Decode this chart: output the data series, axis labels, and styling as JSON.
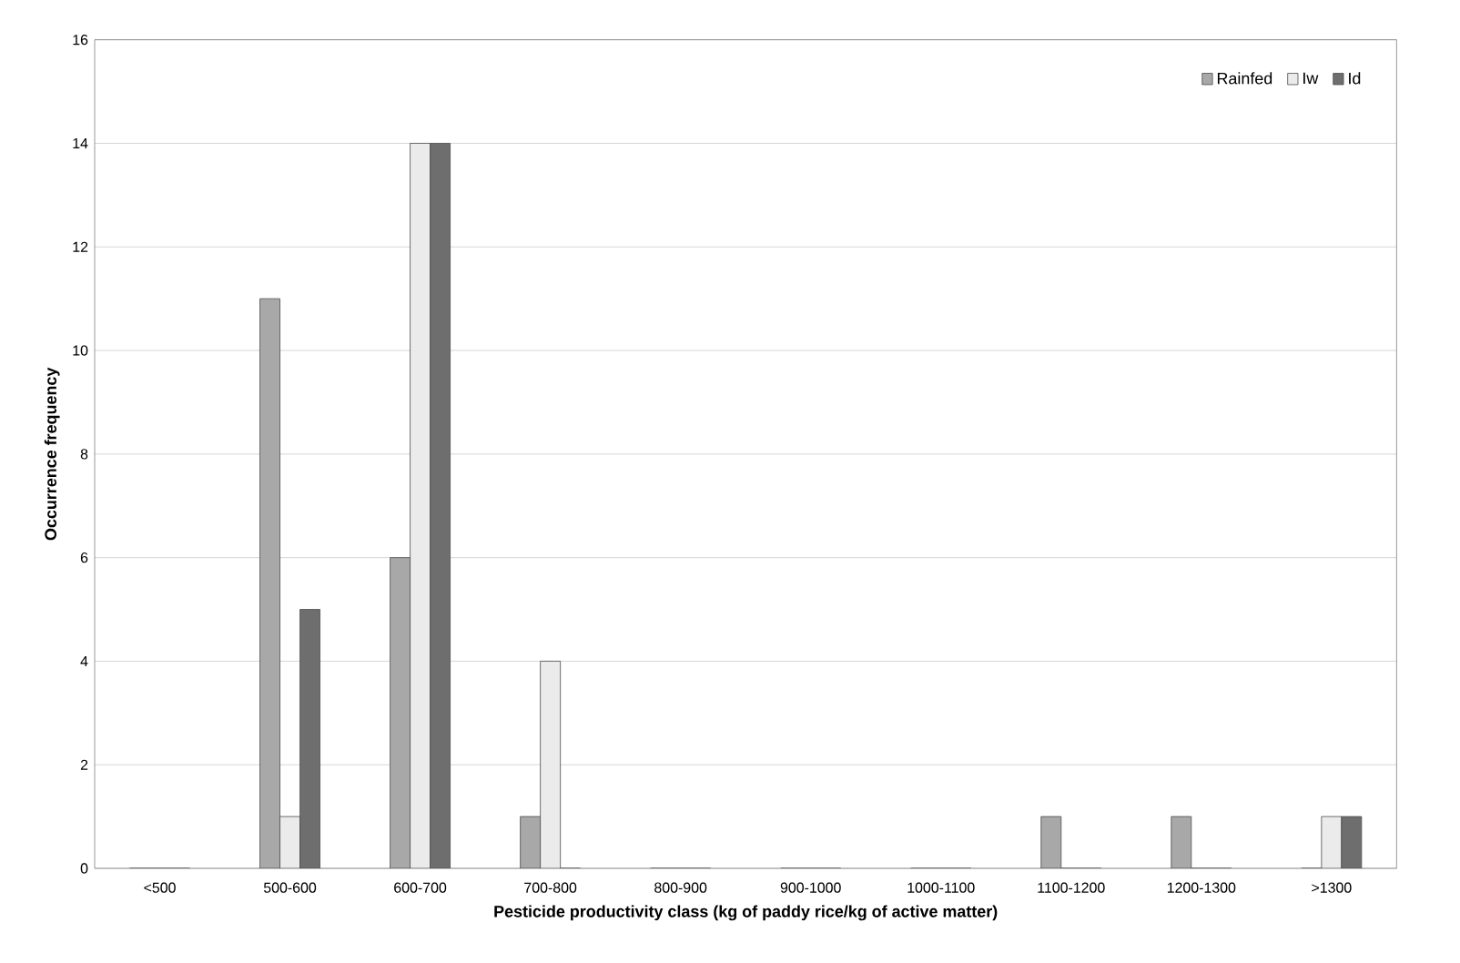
{
  "chart_data": {
    "type": "bar",
    "xlabel": "Pesticide productivity class (kg of paddy rice/kg of active matter)",
    "ylabel": "Occurrence frequency",
    "categories": [
      "<500",
      "500-600",
      "600-700",
      "700-800",
      "800-900",
      "900-1000",
      "1000-1100",
      "1100-1200",
      "1200-1300",
      ">1300"
    ],
    "series": [
      {
        "name": "Rainfed",
        "color": "#a8a8a8",
        "values": [
          0,
          11,
          6,
          1,
          0,
          0,
          0,
          1,
          1,
          0
        ]
      },
      {
        "name": "Iw",
        "color": "#ebebeb",
        "values": [
          0,
          1,
          14,
          4,
          0,
          0,
          0,
          0,
          0,
          1
        ]
      },
      {
        "name": "Id",
        "color": "#6e6e6e",
        "values": [
          0,
          5,
          14,
          0,
          0,
          0,
          0,
          0,
          0,
          1
        ]
      }
    ],
    "ylim": [
      0,
      16
    ],
    "yticks": [
      0,
      2,
      4,
      6,
      8,
      10,
      12,
      14,
      16
    ],
    "grid": "y",
    "legend": "top right"
  }
}
